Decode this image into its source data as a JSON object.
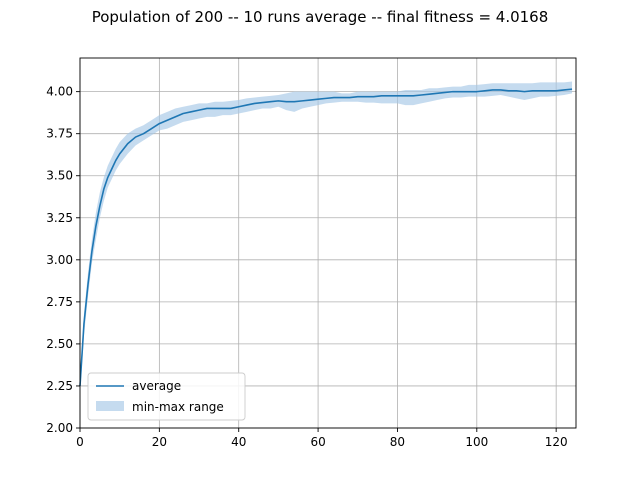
{
  "chart_data": {
    "type": "line",
    "title": "Population of 200 -- 10 runs average -- final fitness = 4.0168",
    "xlabel": "",
    "ylabel": "",
    "xlim": [
      0,
      125
    ],
    "ylim": [
      2.0,
      4.2
    ],
    "x_ticks": [
      0,
      20,
      40,
      60,
      80,
      100,
      120
    ],
    "y_ticks": [
      2.0,
      2.25,
      2.5,
      2.75,
      3.0,
      3.25,
      3.5,
      3.75,
      4.0
    ],
    "y_tick_labels": [
      "2.00",
      "2.25",
      "2.50",
      "2.75",
      "3.00",
      "3.25",
      "3.50",
      "3.75",
      "4.00"
    ],
    "x_tick_labels": [
      "0",
      "20",
      "40",
      "60",
      "80",
      "100",
      "120"
    ],
    "grid": true,
    "legend_position": "lower-left",
    "legend": [
      "average",
      "min-max range"
    ],
    "colors": {
      "line": "#1f77b4",
      "band": "#a6c8e6"
    },
    "series": [
      {
        "name": "average",
        "points": [
          [
            0,
            2.25
          ],
          [
            1,
            2.62
          ],
          [
            2,
            2.85
          ],
          [
            3,
            3.05
          ],
          [
            4,
            3.2
          ],
          [
            5,
            3.32
          ],
          [
            6,
            3.42
          ],
          [
            7,
            3.49
          ],
          [
            8,
            3.54
          ],
          [
            9,
            3.59
          ],
          [
            10,
            3.63
          ],
          [
            12,
            3.69
          ],
          [
            14,
            3.73
          ],
          [
            16,
            3.75
          ],
          [
            18,
            3.78
          ],
          [
            20,
            3.81
          ],
          [
            22,
            3.83
          ],
          [
            24,
            3.85
          ],
          [
            26,
            3.87
          ],
          [
            28,
            3.88
          ],
          [
            30,
            3.89
          ],
          [
            32,
            3.9
          ],
          [
            34,
            3.9
          ],
          [
            36,
            3.9
          ],
          [
            38,
            3.9
          ],
          [
            40,
            3.91
          ],
          [
            42,
            3.92
          ],
          [
            44,
            3.93
          ],
          [
            46,
            3.935
          ],
          [
            48,
            3.94
          ],
          [
            50,
            3.945
          ],
          [
            52,
            3.94
          ],
          [
            54,
            3.94
          ],
          [
            56,
            3.945
          ],
          [
            58,
            3.95
          ],
          [
            60,
            3.955
          ],
          [
            62,
            3.96
          ],
          [
            64,
            3.965
          ],
          [
            66,
            3.965
          ],
          [
            68,
            3.965
          ],
          [
            70,
            3.97
          ],
          [
            72,
            3.97
          ],
          [
            74,
            3.97
          ],
          [
            76,
            3.975
          ],
          [
            78,
            3.975
          ],
          [
            80,
            3.975
          ],
          [
            82,
            3.975
          ],
          [
            84,
            3.975
          ],
          [
            86,
            3.98
          ],
          [
            88,
            3.985
          ],
          [
            90,
            3.99
          ],
          [
            92,
            3.995
          ],
          [
            94,
            4.0
          ],
          [
            96,
            4.0
          ],
          [
            98,
            4.0
          ],
          [
            100,
            4.0
          ],
          [
            102,
            4.005
          ],
          [
            104,
            4.01
          ],
          [
            106,
            4.01
          ],
          [
            108,
            4.005
          ],
          [
            110,
            4.005
          ],
          [
            112,
            4.0
          ],
          [
            114,
            4.005
          ],
          [
            116,
            4.005
          ],
          [
            118,
            4.005
          ],
          [
            120,
            4.005
          ],
          [
            122,
            4.01
          ],
          [
            124,
            4.015
          ]
        ]
      },
      {
        "name": "min-max range",
        "x": [
          0,
          1,
          2,
          3,
          4,
          5,
          6,
          7,
          8,
          9,
          10,
          12,
          14,
          16,
          18,
          20,
          22,
          24,
          26,
          28,
          30,
          32,
          34,
          36,
          38,
          40,
          42,
          44,
          46,
          48,
          50,
          52,
          54,
          56,
          58,
          60,
          62,
          64,
          66,
          68,
          70,
          72,
          74,
          76,
          78,
          80,
          82,
          84,
          86,
          88,
          90,
          92,
          94,
          96,
          98,
          100,
          102,
          104,
          106,
          108,
          110,
          112,
          114,
          116,
          118,
          120,
          122,
          124
        ],
        "lower": [
          2.2,
          2.55,
          2.78,
          2.98,
          3.12,
          3.25,
          3.35,
          3.43,
          3.48,
          3.53,
          3.57,
          3.63,
          3.68,
          3.71,
          3.74,
          3.77,
          3.78,
          3.8,
          3.82,
          3.83,
          3.84,
          3.85,
          3.85,
          3.86,
          3.86,
          3.87,
          3.88,
          3.89,
          3.9,
          3.9,
          3.91,
          3.89,
          3.88,
          3.9,
          3.91,
          3.92,
          3.93,
          3.935,
          3.94,
          3.94,
          3.94,
          3.935,
          3.935,
          3.93,
          3.93,
          3.93,
          3.92,
          3.92,
          3.93,
          3.94,
          3.95,
          3.96,
          3.965,
          3.965,
          3.97,
          3.97,
          3.97,
          3.975,
          3.98,
          3.97,
          3.96,
          3.95,
          3.96,
          3.97,
          3.97,
          3.975,
          3.98,
          3.99
        ],
        "upper": [
          2.3,
          2.68,
          2.92,
          3.12,
          3.28,
          3.4,
          3.49,
          3.56,
          3.61,
          3.66,
          3.7,
          3.75,
          3.78,
          3.8,
          3.83,
          3.86,
          3.88,
          3.9,
          3.91,
          3.92,
          3.93,
          3.93,
          3.94,
          3.94,
          3.945,
          3.95,
          3.96,
          3.965,
          3.97,
          3.975,
          3.98,
          3.99,
          4.0,
          4.0,
          4.0,
          4.0,
          4.0,
          4.0,
          3.99,
          3.99,
          4.0,
          4.0,
          4.0,
          4.0,
          4.0,
          4.0,
          4.01,
          4.01,
          4.01,
          4.02,
          4.02,
          4.025,
          4.03,
          4.03,
          4.04,
          4.04,
          4.045,
          4.05,
          4.05,
          4.05,
          4.05,
          4.05,
          4.05,
          4.055,
          4.055,
          4.055,
          4.055,
          4.06
        ]
      }
    ]
  }
}
